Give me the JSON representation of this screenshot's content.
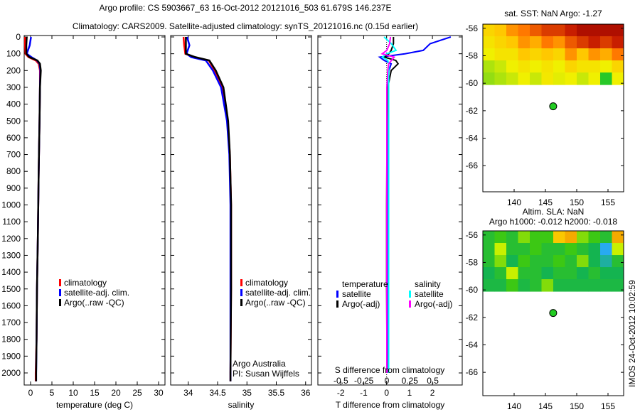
{
  "title_line1": "Argo profile: CS 5903667_63 16-Oct-2012 20121016_503 61.679S 146.237E",
  "title_line2": "Climatology: CARS2009. Satellite-adjusted climatology: synTS_20121016.nc (0.15d earlier)",
  "colors": {
    "clim": "#ff0000",
    "sat": "#0000ff",
    "argo": "#000000",
    "sal_sat": "#00ffff",
    "sal_argo": "#ff00ff"
  },
  "chart_data": [
    {
      "type": "line",
      "id": "temperature",
      "xlabel": "temperature (deg C)",
      "xlim": [
        -1.5,
        31.5
      ],
      "ylim": [
        2050,
        0
      ],
      "xticks": [
        "0",
        "5",
        "10",
        "15",
        "20",
        "25",
        "30"
      ],
      "xtick_values": [
        0,
        5,
        10,
        15,
        20,
        25,
        30
      ],
      "yticks": [
        0,
        100,
        200,
        300,
        400,
        500,
        600,
        700,
        800,
        900,
        1000,
        1100,
        1200,
        1300,
        1400,
        1500,
        1600,
        1700,
        1800,
        1900,
        2000
      ],
      "legend": [
        "climatology",
        "satellite-adj. clim.",
        "Argo(..raw -QC)"
      ],
      "depth": [
        0,
        50,
        100,
        120,
        140,
        160,
        200,
        300,
        500,
        800,
        1000,
        1200,
        1500,
        1800,
        2000,
        2050
      ],
      "series": [
        {
          "name": "climatology",
          "values": [
            -1.3,
            -1.3,
            -1.2,
            -0.5,
            1.2,
            1.9,
            2.2,
            2.2,
            2.1,
            1.9,
            1.8,
            1.7,
            1.5,
            1.4,
            1.2,
            1.2
          ]
        },
        {
          "name": "satellite-adj. clim.",
          "values": [
            0.1,
            -0.2,
            -0.9,
            0.2,
            1.5,
            2.1,
            2.3,
            2.2,
            2.1,
            1.9,
            1.8,
            1.7,
            1.5,
            1.4,
            1.3,
            1.3
          ]
        },
        {
          "name": "Argo",
          "values": [
            -0.9,
            -1.0,
            -1.0,
            -0.3,
            1.6,
            2.2,
            2.4,
            2.2,
            2.1,
            1.9,
            1.8,
            1.7,
            1.5,
            1.4,
            1.3,
            1.3
          ]
        }
      ],
      "annotation": []
    },
    {
      "type": "line",
      "id": "salinity",
      "xlabel": "salinity",
      "xlim": [
        33.7,
        36.1
      ],
      "ylim": [
        2050,
        0
      ],
      "xticks": [
        "34",
        "34.5",
        "35",
        "35.5",
        "36"
      ],
      "xtick_values": [
        34,
        34.5,
        35,
        35.5,
        36
      ],
      "legend": [
        "climatology",
        "satellite-adj. clim.",
        "Argo(..raw -QC)"
      ],
      "depth": [
        0,
        50,
        100,
        120,
        140,
        200,
        300,
        500,
        700,
        1000,
        1500,
        2000,
        2050
      ],
      "series": [
        {
          "name": "climatology",
          "values": [
            33.92,
            33.93,
            33.95,
            34.1,
            34.35,
            34.45,
            34.58,
            34.67,
            34.71,
            34.73,
            34.73,
            34.72,
            34.72
          ]
        },
        {
          "name": "satellite-adj. clim.",
          "values": [
            33.98,
            34.02,
            33.97,
            34.05,
            34.3,
            34.42,
            34.56,
            34.66,
            34.7,
            34.72,
            34.72,
            34.72,
            34.72
          ]
        },
        {
          "name": "Argo",
          "values": [
            33.96,
            33.96,
            33.96,
            34.12,
            34.36,
            34.47,
            34.6,
            34.68,
            34.71,
            34.73,
            34.73,
            34.72,
            34.72
          ]
        }
      ],
      "annotation": [
        "Argo Australia",
        "PI: Susan Wijffels"
      ]
    },
    {
      "type": "line",
      "id": "difference",
      "xlabel": "T difference from climatology",
      "xlim": [
        -3.0,
        3.3
      ],
      "ylim": [
        2050,
        0
      ],
      "xticks": [
        "-2",
        "-1",
        "0",
        "1",
        "2"
      ],
      "xtick_values": [
        -2,
        -1,
        0,
        1,
        2
      ],
      "top_label": "S difference from climatology",
      "s_xlim": [
        -0.75,
        0.82
      ],
      "s_xticks": [
        "-0.5",
        "-0.25",
        "0",
        "0.25",
        "0.5"
      ],
      "s_xtick_values": [
        -0.5,
        -0.25,
        0,
        0.25,
        0.5
      ],
      "legend_titles": [
        "temperature",
        "salinity"
      ],
      "legend": [
        "satellite",
        "Argo(-adj)",
        "satellite",
        "Argo(-adj)"
      ],
      "depth": [
        0,
        40,
        80,
        100,
        120,
        140,
        160,
        200,
        300,
        500,
        1000,
        1500,
        2000
      ],
      "series": [
        {
          "name": "T satellite",
          "values": [
            2.8,
            1.9,
            1.6,
            0.8,
            -0.3,
            -0.1,
            0.2,
            0.1,
            0.05,
            0.03,
            0.05,
            0.05,
            0.08
          ]
        },
        {
          "name": "T Argo(-adj)",
          "values": [
            0.3,
            0.3,
            0.2,
            0.1,
            -0.1,
            0.4,
            0.5,
            0.2,
            0.05,
            0.02,
            0.0,
            0.0,
            0.02
          ]
        },
        {
          "name": "S satellite",
          "values": [
            -0.03,
            0.05,
            0.1,
            0.0,
            -0.05,
            0.01,
            0.02,
            0.02,
            0.02,
            0.02,
            0.02,
            0.02,
            0.02
          ]
        },
        {
          "name": "S Argo(-adj)",
          "values": [
            0.04,
            0.03,
            0.0,
            -0.05,
            0.08,
            0.05,
            0.02,
            0.01,
            0.0,
            0.0,
            0.0,
            0.0,
            0.0
          ]
        }
      ]
    },
    {
      "type": "heatmap",
      "id": "sst-map",
      "title": "sat. SST: NaN Argo: -1.27",
      "xlim": [
        135,
        157.5
      ],
      "ylim": [
        -67.9,
        -55.7
      ],
      "xticks": [
        "140",
        "145",
        "150",
        "155"
      ],
      "xtick_values": [
        140,
        145,
        150,
        155
      ],
      "yticks": [
        "-56",
        "-58",
        "-60",
        "-62",
        "-64",
        "-66"
      ],
      "ytick_values": [
        -56,
        -58,
        -60,
        -62,
        -64,
        -66
      ],
      "data_extent": [
        135,
        157.5,
        -60.1,
        -55.7
      ],
      "grid": [
        [
          0.55,
          0.6,
          0.7,
          0.75,
          0.8,
          0.85,
          0.85,
          0.9,
          0.95,
          0.95,
          0.95,
          0.95
        ],
        [
          0.5,
          0.55,
          0.6,
          0.7,
          0.65,
          0.75,
          0.7,
          0.8,
          0.85,
          0.9,
          0.85,
          0.9
        ],
        [
          0.45,
          0.5,
          0.5,
          0.6,
          0.55,
          0.6,
          0.55,
          0.7,
          0.6,
          0.7,
          0.65,
          0.75
        ],
        [
          0.4,
          0.42,
          0.45,
          0.5,
          0.45,
          0.5,
          0.45,
          0.55,
          0.5,
          0.5,
          0.45,
          0.55
        ],
        [
          0.38,
          0.4,
          0.42,
          0.45,
          0.42,
          0.48,
          0.44,
          0.45,
          0.42,
          0.45,
          0.3,
          0.45
        ]
      ],
      "argo_point": [
        146.237,
        -61.679
      ]
    },
    {
      "type": "heatmap",
      "id": "sla-map",
      "title": "Altim. SLA: NaN",
      "subtitle": "Argo h1000: -0.012 h2000: -0.018",
      "xlim": [
        135,
        157.5
      ],
      "ylim": [
        -67.7,
        -55.7
      ],
      "xticks": [
        "140",
        "145",
        "150",
        "155"
      ],
      "xtick_values": [
        140,
        145,
        150,
        155
      ],
      "yticks": [
        "-56",
        "-58",
        "-60",
        "-62",
        "-64",
        "-66"
      ],
      "ytick_values": [
        -56,
        -58,
        -60,
        -62,
        -64,
        -66
      ],
      "data_extent": [
        135,
        157.5,
        -60.1,
        -55.7
      ],
      "grid": [
        [
          0.45,
          0.5,
          0.45,
          0.55,
          0.5,
          0.5,
          0.7,
          0.75,
          0.55,
          0.5,
          0.45,
          0.75
        ],
        [
          0.45,
          0.6,
          0.45,
          0.45,
          0.5,
          0.45,
          0.45,
          0.5,
          0.45,
          0.4,
          0.2,
          0.6
        ],
        [
          0.45,
          0.55,
          0.4,
          0.5,
          0.45,
          0.45,
          0.5,
          0.45,
          0.55,
          0.4,
          0.3,
          0.45
        ],
        [
          0.4,
          0.45,
          0.6,
          0.45,
          0.45,
          0.4,
          0.45,
          0.45,
          0.4,
          0.45,
          0.4,
          0.4
        ],
        [
          0.42,
          0.42,
          0.5,
          0.42,
          0.45,
          0.55,
          0.42,
          0.42,
          0.42,
          0.42,
          0.42,
          0.42
        ]
      ],
      "argo_point": [
        146.237,
        -61.679
      ]
    }
  ],
  "footer_stamp": "IMOS 24-Oct-2012 10:02:59"
}
